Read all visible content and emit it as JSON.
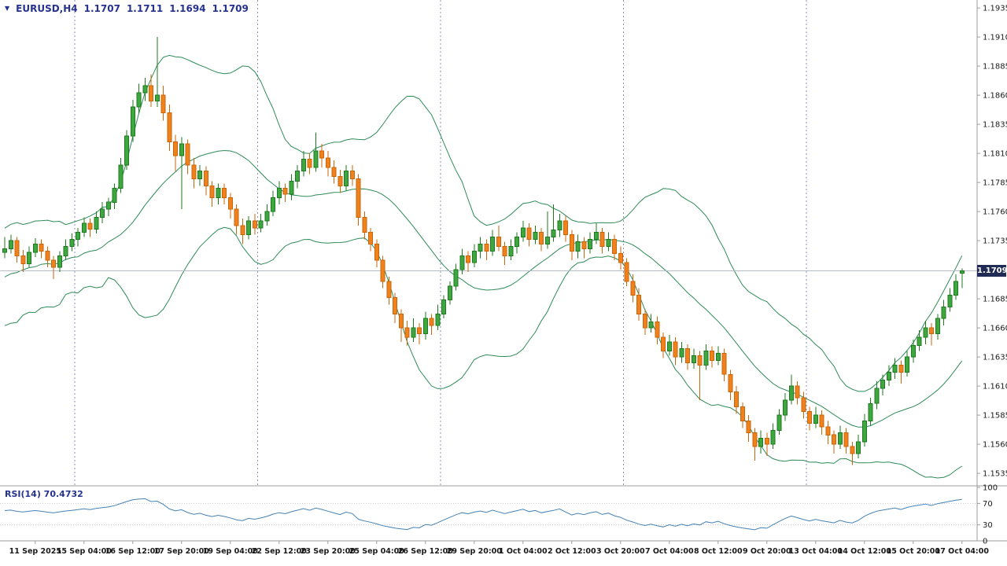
{
  "info_bar": {
    "symbol": "EURUSD,H4",
    "ohlc": [
      "1.1707",
      "1.1711",
      "1.1694",
      "1.1709"
    ]
  },
  "price_badge": "1.1709",
  "rsi_label": "RSI(14) 70.4732",
  "colors": {
    "background": "#ffffff",
    "up_fill": "#3fa73f",
    "up_stroke": "#1e7a1e",
    "down_fill": "#f0821e",
    "down_stroke": "#c9660a",
    "bollinger": "#2e8b57",
    "rsi": "#4682b4",
    "bid_line": "#b8bcc4",
    "separator": "#8890b8",
    "grid": "#c8c8c8",
    "axis_line": "#9c9c9c",
    "text": "#1a1a1a",
    "info_text": "#26328f",
    "badge_bg": "#1f2a55",
    "badge_text": "#ffffff"
  },
  "price_axis": {
    "labels": [
      "1.1935",
      "1.1910",
      "1.1885",
      "1.1860",
      "1.1835",
      "1.1810",
      "1.1785",
      "1.1760",
      "1.1735",
      "1.1685",
      "1.1660",
      "1.1635",
      "1.1610",
      "1.1585",
      "1.1560",
      "1.1535"
    ]
  },
  "rsi_axis": {
    "labels": [
      "100",
      "70",
      "30",
      "0"
    ],
    "levels": [
      70,
      30
    ]
  },
  "time_axis": {
    "first_label_bar": 5,
    "bar_step": 8,
    "labels": [
      "11 Sep 2025",
      "15 Sep 04:00",
      "16 Sep 12:00",
      "17 Sep 20:00",
      "19 Sep 04:00",
      "22 Sep 12:00",
      "23 Sep 20:00",
      "25 Sep 04:00",
      "26 Sep 12:00",
      "29 Sep 20:00",
      "1 Oct 04:00",
      "2 Oct 12:00",
      "3 Oct 20:00",
      "7 Oct 04:00",
      "8 Oct 12:00",
      "9 Oct 20:00",
      "13 Oct 04:00",
      "14 Oct 12:00",
      "15 Oct 20:00",
      "17 Oct 04:00"
    ]
  },
  "chart_data": {
    "type": "candlestick",
    "symbol": "EURUSD",
    "period": "H4",
    "current_price": 1.1709,
    "price_range_shown": [
      1.1535,
      1.1935
    ],
    "indicators": [
      {
        "name": "Bollinger Bands",
        "period": 20,
        "deviation": 2
      },
      {
        "name": "RSI",
        "period": 14,
        "value": 70.4732
      }
    ],
    "separator_bars": [
      12,
      42,
      72,
      102,
      132
    ],
    "pre_closes": [
      1.1662,
      1.168,
      1.17,
      1.1668,
      1.169,
      1.1715,
      1.1684,
      1.1705,
      1.1728,
      1.1695,
      1.1672,
      1.1702,
      1.173,
      1.1688,
      1.171,
      1.174,
      1.1705,
      1.1682,
      1.1718,
      1.1735
    ],
    "candles": [
      [
        1.1725,
        1.1738,
        1.172,
        1.1728
      ],
      [
        1.1728,
        1.174,
        1.1724,
        1.1735
      ],
      [
        1.1735,
        1.1738,
        1.1716,
        1.1722
      ],
      [
        1.1722,
        1.1727,
        1.1708,
        1.1715
      ],
      [
        1.1715,
        1.173,
        1.1712,
        1.1725
      ],
      [
        1.1725,
        1.1737,
        1.1721,
        1.1732
      ],
      [
        1.1732,
        1.1736,
        1.172,
        1.1726
      ],
      [
        1.1726,
        1.173,
        1.1712,
        1.1718
      ],
      [
        1.1718,
        1.1722,
        1.1702,
        1.1712
      ],
      [
        1.1712,
        1.1726,
        1.1708,
        1.1722
      ],
      [
        1.1722,
        1.1736,
        1.1718,
        1.173
      ],
      [
        1.173,
        1.1741,
        1.1726,
        1.1736
      ],
      [
        1.1736,
        1.1746,
        1.173,
        1.1742
      ],
      [
        1.1742,
        1.1755,
        1.1738,
        1.175
      ],
      [
        1.175,
        1.1754,
        1.1738,
        1.1745
      ],
      [
        1.1745,
        1.176,
        1.1741,
        1.1755
      ],
      [
        1.1755,
        1.1768,
        1.175,
        1.1762
      ],
      [
        1.1762,
        1.1772,
        1.1756,
        1.1768
      ],
      [
        1.1768,
        1.1784,
        1.1762,
        1.178
      ],
      [
        1.178,
        1.1806,
        1.1776,
        1.18
      ],
      [
        1.18,
        1.183,
        1.1796,
        1.1825
      ],
      [
        1.1825,
        1.1856,
        1.182,
        1.185
      ],
      [
        1.185,
        1.187,
        1.1844,
        1.1862
      ],
      [
        1.1862,
        1.1875,
        1.1855,
        1.1868
      ],
      [
        1.1868,
        1.1878,
        1.185,
        1.1855
      ],
      [
        1.1855,
        1.191,
        1.185,
        1.186
      ],
      [
        1.186,
        1.1868,
        1.1838,
        1.1845
      ],
      [
        1.1845,
        1.1852,
        1.1812,
        1.182
      ],
      [
        1.182,
        1.1826,
        1.1795,
        1.1808
      ],
      [
        1.1808,
        1.1824,
        1.1762,
        1.1818
      ],
      [
        1.1818,
        1.1822,
        1.1792,
        1.18
      ],
      [
        1.18,
        1.1806,
        1.178,
        1.1788
      ],
      [
        1.1788,
        1.18,
        1.1782,
        1.1795
      ],
      [
        1.1795,
        1.1799,
        1.1774,
        1.1782
      ],
      [
        1.1782,
        1.1786,
        1.1764,
        1.1772
      ],
      [
        1.1772,
        1.1784,
        1.1766,
        1.178
      ],
      [
        1.178,
        1.1784,
        1.1766,
        1.1772
      ],
      [
        1.1772,
        1.1776,
        1.1754,
        1.1762
      ],
      [
        1.1762,
        1.1766,
        1.174,
        1.1748
      ],
      [
        1.1748,
        1.1754,
        1.1732,
        1.174
      ],
      [
        1.174,
        1.1756,
        1.1736,
        1.1752
      ],
      [
        1.1752,
        1.1758,
        1.174,
        1.1746
      ],
      [
        1.1746,
        1.1758,
        1.1742,
        1.1752
      ],
      [
        1.1752,
        1.1766,
        1.1748,
        1.176
      ],
      [
        1.176,
        1.1778,
        1.1756,
        1.1772
      ],
      [
        1.1772,
        1.1786,
        1.1766,
        1.178
      ],
      [
        1.178,
        1.1784,
        1.1768,
        1.1775
      ],
      [
        1.1775,
        1.1792,
        1.177,
        1.1786
      ],
      [
        1.1786,
        1.18,
        1.178,
        1.1795
      ],
      [
        1.1795,
        1.1812,
        1.179,
        1.1805
      ],
      [
        1.1805,
        1.181,
        1.1792,
        1.1798
      ],
      [
        1.1798,
        1.1828,
        1.1794,
        1.1812
      ],
      [
        1.1812,
        1.1818,
        1.1798,
        1.1806
      ],
      [
        1.1806,
        1.1812,
        1.179,
        1.1798
      ],
      [
        1.1798,
        1.1804,
        1.1784,
        1.179
      ],
      [
        1.179,
        1.1796,
        1.1776,
        1.1782
      ],
      [
        1.1782,
        1.18,
        1.1778,
        1.1795
      ],
      [
        1.1795,
        1.18,
        1.1782,
        1.1788
      ],
      [
        1.1788,
        1.1792,
        1.1748,
        1.1755
      ],
      [
        1.1755,
        1.176,
        1.1736,
        1.1742
      ],
      [
        1.1742,
        1.1746,
        1.1726,
        1.1732
      ],
      [
        1.1732,
        1.1736,
        1.1712,
        1.1718
      ],
      [
        1.1718,
        1.1722,
        1.1694,
        1.17
      ],
      [
        1.17,
        1.1704,
        1.168,
        1.1686
      ],
      [
        1.1686,
        1.169,
        1.1664,
        1.1672
      ],
      [
        1.1672,
        1.1676,
        1.1648,
        1.166
      ],
      [
        1.166,
        1.1666,
        1.1645,
        1.1652
      ],
      [
        1.1652,
        1.1668,
        1.1648,
        1.166
      ],
      [
        1.166,
        1.1664,
        1.1646,
        1.1655
      ],
      [
        1.1655,
        1.1674,
        1.165,
        1.1668
      ],
      [
        1.1668,
        1.1672,
        1.1654,
        1.1662
      ],
      [
        1.1662,
        1.168,
        1.1658,
        1.1672
      ],
      [
        1.1672,
        1.1688,
        1.1668,
        1.1684
      ],
      [
        1.1684,
        1.17,
        1.168,
        1.1696
      ],
      [
        1.1696,
        1.1715,
        1.1692,
        1.171
      ],
      [
        1.171,
        1.1728,
        1.1706,
        1.1722
      ],
      [
        1.1722,
        1.1726,
        1.1708,
        1.1716
      ],
      [
        1.1716,
        1.1732,
        1.1712,
        1.1726
      ],
      [
        1.1726,
        1.1738,
        1.172,
        1.1732
      ],
      [
        1.1732,
        1.1736,
        1.1718,
        1.1726
      ],
      [
        1.1726,
        1.1744,
        1.1722,
        1.1738
      ],
      [
        1.1738,
        1.1748,
        1.1726,
        1.173
      ],
      [
        1.173,
        1.1734,
        1.1714,
        1.1722
      ],
      [
        1.1722,
        1.1736,
        1.1718,
        1.173
      ],
      [
        1.173,
        1.1742,
        1.1724,
        1.1738
      ],
      [
        1.1738,
        1.1752,
        1.1734,
        1.1746
      ],
      [
        1.1746,
        1.175,
        1.173,
        1.1736
      ],
      [
        1.1736,
        1.1748,
        1.1732,
        1.1742
      ],
      [
        1.1742,
        1.1746,
        1.1726,
        1.1732
      ],
      [
        1.1732,
        1.176,
        1.1728,
        1.1738
      ],
      [
        1.1738,
        1.1766,
        1.1734,
        1.1744
      ],
      [
        1.1744,
        1.1758,
        1.1738,
        1.1752
      ],
      [
        1.1752,
        1.1756,
        1.1734,
        1.174
      ],
      [
        1.174,
        1.1744,
        1.1718,
        1.1726
      ],
      [
        1.1726,
        1.174,
        1.172,
        1.1734
      ],
      [
        1.1734,
        1.1738,
        1.172,
        1.1728
      ],
      [
        1.1728,
        1.1742,
        1.1724,
        1.1736
      ],
      [
        1.1736,
        1.175,
        1.1732,
        1.1742
      ],
      [
        1.1742,
        1.1746,
        1.1724,
        1.173
      ],
      [
        1.173,
        1.1742,
        1.1726,
        1.1736
      ],
      [
        1.1736,
        1.174,
        1.1718,
        1.1724
      ],
      [
        1.1724,
        1.173,
        1.171,
        1.1716
      ],
      [
        1.1716,
        1.172,
        1.1696,
        1.17
      ],
      [
        1.17,
        1.1706,
        1.1682,
        1.1688
      ],
      [
        1.1688,
        1.1694,
        1.1666,
        1.1672
      ],
      [
        1.1672,
        1.1676,
        1.1654,
        1.166
      ],
      [
        1.166,
        1.1672,
        1.1656,
        1.1665
      ],
      [
        1.1665,
        1.167,
        1.1646,
        1.1652
      ],
      [
        1.1652,
        1.1656,
        1.1634,
        1.164
      ],
      [
        1.164,
        1.1654,
        1.1636,
        1.1648
      ],
      [
        1.1648,
        1.1652,
        1.1628,
        1.1635
      ],
      [
        1.1635,
        1.1648,
        1.163,
        1.1642
      ],
      [
        1.1642,
        1.1646,
        1.1624,
        1.163
      ],
      [
        1.163,
        1.1642,
        1.1625,
        1.1636
      ],
      [
        1.1636,
        1.164,
        1.1598,
        1.1628
      ],
      [
        1.1628,
        1.1646,
        1.1624,
        1.164
      ],
      [
        1.164,
        1.1644,
        1.1626,
        1.1632
      ],
      [
        1.1632,
        1.1644,
        1.1628,
        1.1638
      ],
      [
        1.1638,
        1.1642,
        1.1614,
        1.162
      ],
      [
        1.162,
        1.1624,
        1.1598,
        1.1605
      ],
      [
        1.1605,
        1.161,
        1.1586,
        1.1592
      ],
      [
        1.1592,
        1.1596,
        1.1574,
        1.158
      ],
      [
        1.158,
        1.1585,
        1.1562,
        1.157
      ],
      [
        1.157,
        1.1574,
        1.1546,
        1.1558
      ],
      [
        1.1558,
        1.1572,
        1.1552,
        1.1565
      ],
      [
        1.1565,
        1.157,
        1.155,
        1.156
      ],
      [
        1.156,
        1.1578,
        1.1556,
        1.1572
      ],
      [
        1.1572,
        1.159,
        1.1568,
        1.1585
      ],
      [
        1.1585,
        1.1604,
        1.158,
        1.1598
      ],
      [
        1.1598,
        1.162,
        1.1594,
        1.161
      ],
      [
        1.161,
        1.1614,
        1.1594,
        1.16
      ],
      [
        1.16,
        1.1605,
        1.1582,
        1.1588
      ],
      [
        1.1588,
        1.1592,
        1.1572,
        1.1578
      ],
      [
        1.1578,
        1.1592,
        1.1574,
        1.1585
      ],
      [
        1.1585,
        1.1589,
        1.1568,
        1.1575
      ],
      [
        1.1575,
        1.158,
        1.156,
        1.1568
      ],
      [
        1.1568,
        1.1572,
        1.1552,
        1.156
      ],
      [
        1.156,
        1.1576,
        1.1556,
        1.157
      ],
      [
        1.157,
        1.1574,
        1.1552,
        1.1558
      ],
      [
        1.1558,
        1.1562,
        1.1542,
        1.1552
      ],
      [
        1.1552,
        1.1568,
        1.1548,
        1.1562
      ],
      [
        1.1562,
        1.1586,
        1.1558,
        1.158
      ],
      [
        1.158,
        1.16,
        1.1576,
        1.1595
      ],
      [
        1.1595,
        1.1614,
        1.159,
        1.1608
      ],
      [
        1.1608,
        1.162,
        1.1602,
        1.1615
      ],
      [
        1.1615,
        1.1628,
        1.161,
        1.1622
      ],
      [
        1.1622,
        1.1634,
        1.1616,
        1.1628
      ],
      [
        1.1628,
        1.1632,
        1.1612,
        1.1622
      ],
      [
        1.1622,
        1.164,
        1.1618,
        1.1635
      ],
      [
        1.1635,
        1.165,
        1.163,
        1.1645
      ],
      [
        1.1645,
        1.1658,
        1.164,
        1.1652
      ],
      [
        1.1652,
        1.1666,
        1.1646,
        1.166
      ],
      [
        1.166,
        1.1664,
        1.1645,
        1.1655
      ],
      [
        1.1655,
        1.1672,
        1.165,
        1.1668
      ],
      [
        1.1668,
        1.1684,
        1.1662,
        1.1678
      ],
      [
        1.1678,
        1.1694,
        1.1674,
        1.1688
      ],
      [
        1.1688,
        1.1706,
        1.1684,
        1.17
      ],
      [
        1.1707,
        1.1711,
        1.1694,
        1.1709
      ]
    ]
  }
}
